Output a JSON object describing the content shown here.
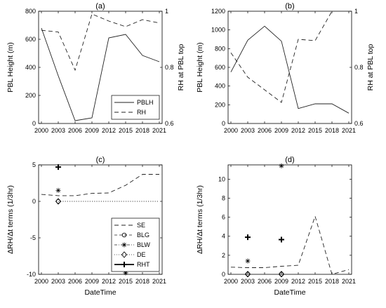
{
  "chart_data": [
    {
      "panel": "(a)",
      "type": "line",
      "title": "(a)",
      "x": [
        "2000",
        "2003",
        "2006",
        "2009",
        "2012",
        "2015",
        "2018",
        "2021"
      ],
      "xlabel": "",
      "ylabel": "PBL Height (m)",
      "ylim": [
        0,
        800
      ],
      "yticks": [
        "0",
        "200",
        "400",
        "600",
        "800"
      ],
      "y2label": "RH at PBL top",
      "y2lim": [
        0.6,
        1.0
      ],
      "y2ticks": [
        "0.6",
        "0.8",
        "1"
      ],
      "legend": "right",
      "series": [
        {
          "name": "PBLH",
          "axis": "left",
          "style": "solid",
          "values": [
            680,
            340,
            20,
            40,
            610,
            635,
            485,
            440
          ]
        },
        {
          "name": "RH",
          "axis": "right",
          "style": "dashed",
          "values": [
            0.932,
            0.926,
            0.79,
            0.99,
            0.965,
            0.945,
            0.97,
            0.958
          ]
        }
      ]
    },
    {
      "panel": "(b)",
      "type": "line",
      "title": "(b)",
      "x": [
        "2000",
        "2003",
        "2006",
        "2009",
        "2012",
        "2015",
        "2018",
        "2021"
      ],
      "xlabel": "",
      "ylabel": "PBL Height (m)",
      "ylim": [
        0,
        1200
      ],
      "yticks": [
        "0",
        "200",
        "400",
        "600",
        "800",
        "1000",
        "1200"
      ],
      "y2label": "RH at PBL top",
      "y2lim": [
        0.6,
        1.0
      ],
      "y2ticks": [
        "0.6",
        "0.8",
        "1"
      ],
      "series": [
        {
          "name": "PBLH",
          "axis": "left",
          "style": "solid",
          "values": [
            550,
            890,
            1040,
            880,
            160,
            210,
            210,
            110
          ]
        },
        {
          "name": "RH",
          "axis": "right",
          "style": "dashed",
          "values": [
            0.852,
            0.765,
            0.72,
            0.675,
            0.9,
            0.895,
            1.0,
            null
          ]
        }
      ]
    },
    {
      "panel": "(c)",
      "type": "line",
      "title": "(c)",
      "x": [
        "2000",
        "2003",
        "2006",
        "2009",
        "2012",
        "2015",
        "2018",
        "2021"
      ],
      "xlabel": "DateTime",
      "ylabel": "ΔRH/Δt terms (1/3hr)",
      "ylim": [
        -10,
        5
      ],
      "yticks": [
        "-10",
        "-5",
        "0",
        "5"
      ],
      "legend": "right",
      "series": [
        {
          "name": "SE",
          "style": "dashed",
          "values": [
            0.95,
            0.78,
            0.78,
            1.1,
            1.15,
            2.2,
            3.7,
            3.7
          ]
        },
        {
          "name": "BLG",
          "style": "marker-circle",
          "points": [
            {
              "x": "2003",
              "y": 0
            }
          ]
        },
        {
          "name": "BLW",
          "style": "marker-asterisk",
          "points": [
            {
              "x": "2003",
              "y": 1.5
            },
            {
              "x": "2015",
              "y": -9.8
            }
          ]
        },
        {
          "name": "DE",
          "style": "marker-diamond",
          "points": [
            {
              "x": "2003",
              "y": 0
            }
          ]
        },
        {
          "name": "RHT",
          "style": "marker-plus",
          "points": [
            {
              "x": "2003",
              "y": 4.7
            }
          ]
        }
      ],
      "reference_line": {
        "style": "dotted",
        "y": 0,
        "x_from": "2003",
        "x_to": "2021"
      }
    },
    {
      "panel": "(d)",
      "type": "line",
      "title": "(d)",
      "x": [
        "2000",
        "2003",
        "2006",
        "2009",
        "2012",
        "2015",
        "2018",
        "2021"
      ],
      "xlabel": "DateTime",
      "ylabel": "ΔRH/Δt terms (1/3hr)",
      "ylim": [
        0,
        11.5
      ],
      "yticks": [
        "0",
        "2",
        "4",
        "6",
        "8",
        "10"
      ],
      "series": [
        {
          "name": "SE",
          "style": "dashed",
          "values": [
            0.75,
            0.7,
            0.7,
            0.85,
            0.95,
            6.1,
            0.0,
            0.5
          ]
        },
        {
          "name": "BLG",
          "style": "marker-circle",
          "points": [
            {
              "x": "2003",
              "y": 0.02
            },
            {
              "x": "2009",
              "y": 0.02
            }
          ]
        },
        {
          "name": "BLW",
          "style": "marker-asterisk",
          "points": [
            {
              "x": "2003",
              "y": 1.4
            },
            {
              "x": "2009",
              "y": 11.4
            }
          ]
        },
        {
          "name": "DE",
          "style": "marker-diamond",
          "points": [
            {
              "x": "2003",
              "y": 0.02
            },
            {
              "x": "2009",
              "y": 0.02
            }
          ]
        },
        {
          "name": "RHT",
          "style": "marker-plus",
          "points": [
            {
              "x": "2003",
              "y": 3.9
            },
            {
              "x": "2009",
              "y": 3.65
            }
          ]
        }
      ]
    }
  ]
}
